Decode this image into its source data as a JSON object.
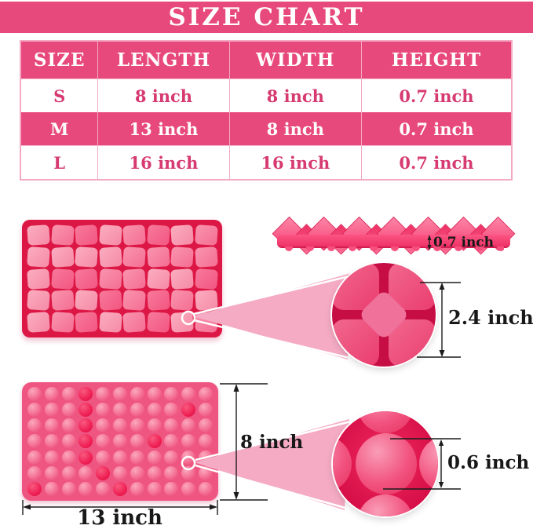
{
  "title": "SIZE CHART",
  "table": {
    "headers": [
      "SIZE",
      "LENGTH",
      "WIDTH",
      "HEIGHT"
    ],
    "rows": [
      {
        "size": "S",
        "length": "8 inch",
        "width": "8 inch",
        "height": "0.7 inch",
        "highlighted": false
      },
      {
        "size": "M",
        "length": "13 inch",
        "width": "8 inch",
        "height": "0.7 inch",
        "highlighted": true
      },
      {
        "size": "L",
        "length": "16 inch",
        "width": "16 inch",
        "height": "0.7 inch",
        "highlighted": false
      }
    ]
  },
  "annotations": {
    "side_height": "0.7 inch",
    "cavity_size": "2.4 inch",
    "mat_height": "8 inch",
    "mat_length": "13 inch",
    "bump_size": "0.6 inch"
  },
  "colors": {
    "accent_pink": "#e8497d",
    "cell_text_pink": "#d63a71",
    "table_border_pink": "#f3a9c4",
    "mold_crimson": "#dc1745",
    "dimension_text": "#181818",
    "wedge_pink": "#f5abc4"
  },
  "chart_data": {
    "type": "table",
    "title": "SIZE CHART",
    "columns": [
      "SIZE",
      "LENGTH",
      "WIDTH",
      "HEIGHT"
    ],
    "rows": [
      [
        "S",
        "8 inch",
        "8 inch",
        "0.7 inch"
      ],
      [
        "M",
        "13 inch",
        "8 inch",
        "0.7 inch"
      ],
      [
        "L",
        "16 inch",
        "16 inch",
        "0.7 inch"
      ]
    ],
    "highlighted_row": "M",
    "callout_measurements": {
      "tray_side_height": "0.7 inch",
      "square_cavity_width": "2.4 inch",
      "bump_mat_width": "8 inch",
      "bump_mat_length": "13 inch",
      "bump_diameter": "0.6 inch"
    }
  }
}
